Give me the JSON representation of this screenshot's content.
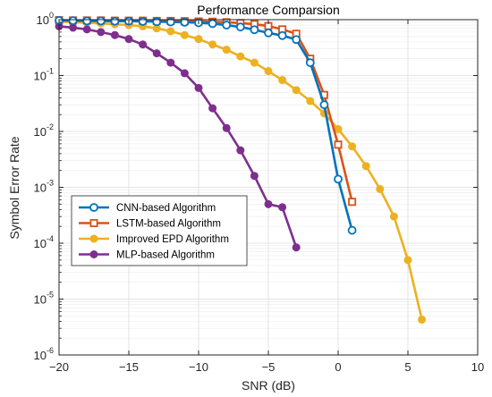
{
  "chart_data": {
    "type": "line",
    "title": "Performance Comparsion",
    "xlabel": "SNR (dB)",
    "ylabel": "Symbol Error Rate",
    "xlim": [
      -20,
      10
    ],
    "ylim": [
      1e-06,
      1
    ],
    "yscale": "log",
    "grid": true,
    "legend_position": "lower-left",
    "x_ticks": [
      -20,
      -15,
      -10,
      -5,
      0,
      5,
      10
    ],
    "x_tick_labels": [
      "−20",
      "−15",
      "−10",
      "−5",
      "0",
      "5",
      "10"
    ],
    "y_tick_labels": [
      {
        "base": "10",
        "exp": "0"
      },
      {
        "base": "10",
        "exp": "-1"
      },
      {
        "base": "10",
        "exp": "-2"
      },
      {
        "base": "10",
        "exp": "-3"
      },
      {
        "base": "10",
        "exp": "-4"
      },
      {
        "base": "10",
        "exp": "-5"
      },
      {
        "base": "10",
        "exp": "-6"
      }
    ],
    "series": [
      {
        "name": "CNN-based Algorithm",
        "color": "#0072BD",
        "marker": "circle",
        "x": [
          -20,
          -19,
          -18,
          -17,
          -16,
          -15,
          -14,
          -13,
          -12,
          -11,
          -10,
          -9,
          -8,
          -7,
          -6,
          -5,
          -4,
          -3,
          -2,
          -1,
          0,
          1
        ],
        "y": [
          0.97,
          0.96,
          0.95,
          0.95,
          0.94,
          0.94,
          0.93,
          0.92,
          0.91,
          0.9,
          0.88,
          0.85,
          0.8,
          0.74,
          0.66,
          0.58,
          0.52,
          0.44,
          0.17,
          0.03,
          0.0014,
          0.00017
        ]
      },
      {
        "name": "LSTM-based Algorithm",
        "color": "#D95319",
        "marker": "square",
        "x": [
          -20,
          -19,
          -18,
          -17,
          -16,
          -15,
          -14,
          -13,
          -12,
          -11,
          -10,
          -9,
          -8,
          -7,
          -6,
          -5,
          -4,
          -3,
          -2,
          -1,
          0,
          1
        ],
        "y": [
          0.98,
          0.97,
          0.97,
          0.97,
          0.96,
          0.96,
          0.96,
          0.95,
          0.95,
          0.94,
          0.93,
          0.92,
          0.9,
          0.87,
          0.83,
          0.77,
          0.67,
          0.56,
          0.2,
          0.045,
          0.0058,
          0.00055
        ]
      },
      {
        "name": "Improved EPD Algorithm",
        "color": "#EDB120",
        "marker": "circle",
        "x": [
          -20,
          -19,
          -18,
          -17,
          -16,
          -15,
          -14,
          -13,
          -12,
          -11,
          -10,
          -9,
          -8,
          -7,
          -6,
          -5,
          -4,
          -3,
          -2,
          -1,
          0,
          1,
          2,
          3,
          4,
          5,
          6
        ],
        "y": [
          0.92,
          0.9,
          0.88,
          0.86,
          0.83,
          0.8,
          0.76,
          0.7,
          0.62,
          0.53,
          0.45,
          0.36,
          0.29,
          0.22,
          0.17,
          0.12,
          0.083,
          0.055,
          0.035,
          0.021,
          0.011,
          0.0054,
          0.0024,
          0.00093,
          0.0003,
          5e-05,
          4.3e-06
        ]
      },
      {
        "name": "MLP-based Algorithm",
        "color": "#7E2F8E",
        "marker": "circle",
        "x": [
          -20,
          -19,
          -18,
          -17,
          -16,
          -15,
          -14,
          -13,
          -12,
          -11,
          -10,
          -9,
          -8,
          -7,
          -6,
          -5,
          -4,
          -3
        ],
        "y": [
          0.76,
          0.72,
          0.67,
          0.6,
          0.53,
          0.45,
          0.36,
          0.25,
          0.17,
          0.11,
          0.06,
          0.026,
          0.0115,
          0.0046,
          0.0016,
          0.0005,
          0.00044,
          8.4e-05
        ]
      }
    ]
  }
}
